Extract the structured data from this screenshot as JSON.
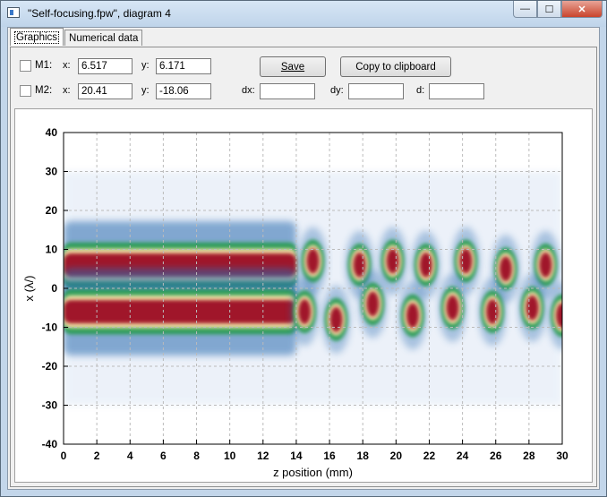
{
  "window": {
    "title": "\"Self-focusing.fpw\", diagram 4",
    "minimize": "—",
    "maximize": "☐",
    "close": "✕"
  },
  "tabs": [
    {
      "label": "Graphics",
      "active": true
    },
    {
      "label": "Numerical data",
      "active": false
    }
  ],
  "markers": {
    "m1": {
      "label": "M1:",
      "x_label": "x:",
      "x_value": "6.517",
      "y_label": "y:",
      "y_value": "6.171",
      "checked": false
    },
    "m2": {
      "label": "M2:",
      "x_label": "x:",
      "x_value": "20.41",
      "y_label": "y:",
      "y_value": "-18.06",
      "checked": false
    },
    "dx_label": "dx:",
    "dx_value": "",
    "dy_label": "dy:",
    "dy_value": "",
    "d_label": "d:",
    "d_value": ""
  },
  "buttons": {
    "save": "Save",
    "copy": "Copy to clipboard"
  },
  "colors": {
    "hot": "#a0142a",
    "mid": "#f5e5a6",
    "green": "#2f9d5a",
    "cool": "#2b6cb0",
    "bg": "#ffffff"
  },
  "chart_data": {
    "type": "heatmap",
    "xlabel": "z position (mm)",
    "ylabel": "x (λ/)",
    "xlim": [
      0,
      30
    ],
    "ylim": [
      -40,
      40
    ],
    "x_ticks": [
      0,
      2,
      4,
      6,
      8,
      10,
      12,
      14,
      16,
      18,
      20,
      22,
      24,
      26,
      28,
      30
    ],
    "y_ticks": [
      -40,
      -30,
      -20,
      -10,
      0,
      10,
      20,
      30,
      40
    ],
    "grid": true,
    "features": [
      {
        "name": "upper beam",
        "z_range": [
          0,
          14
        ],
        "x_center": 6,
        "x_halfwidth": 4
      },
      {
        "name": "lower beam",
        "z_range": [
          0,
          14
        ],
        "x_center": -6,
        "x_halfwidth": 4
      },
      {
        "name": "upper filaments",
        "z": [
          15.0,
          17.8,
          19.8,
          21.8,
          24.2,
          26.6,
          29.0
        ],
        "x": [
          7,
          6,
          7,
          6,
          7,
          5,
          6
        ]
      },
      {
        "name": "lower filaments",
        "z": [
          14.5,
          16.4,
          18.6,
          21.0,
          23.4,
          25.8,
          28.2,
          30.0
        ],
        "x": [
          -6,
          -8,
          -4,
          -7,
          -5,
          -6,
          -5,
          -7
        ]
      }
    ]
  }
}
